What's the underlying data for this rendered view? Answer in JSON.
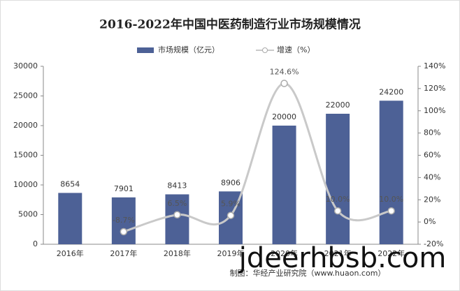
{
  "chart_data": {
    "type": "bar-line",
    "title": "2016-2022年中国中医药制造行业市场规模情况",
    "categories": [
      "2016年",
      "2017年",
      "2018年",
      "2019年",
      "2020年",
      "2021年",
      "2022年"
    ],
    "series": [
      {
        "name": "市场规模（亿元）",
        "type": "bar",
        "color": "#4d6196",
        "values": [
          8654,
          7901,
          8413,
          8906,
          20000,
          22000,
          24200
        ]
      },
      {
        "name": "增速（%）",
        "type": "line",
        "axis": "y2",
        "color": "#c9c9c9",
        "values": [
          null,
          -8.7,
          6.5,
          5.9,
          124.6,
          10.0,
          10.0
        ],
        "value_labels": [
          null,
          "-8.7%",
          "6.5%",
          "5.9%",
          "124.6%",
          "10.0%",
          "10.0%"
        ]
      }
    ],
    "ylim": [
      0,
      30000
    ],
    "yticks": [
      0,
      5000,
      10000,
      15000,
      20000,
      25000,
      30000
    ],
    "y2lim": [
      -20,
      140
    ],
    "y2ticks": [
      {
        "value": -20,
        "label": "-20%"
      },
      {
        "value": 0,
        "label": "0%"
      },
      {
        "value": 20,
        "label": "20%"
      },
      {
        "value": 40,
        "label": "40%"
      },
      {
        "value": 60,
        "label": "60%"
      },
      {
        "value": 80,
        "label": "80%"
      },
      {
        "value": 100,
        "label": "100%"
      },
      {
        "value": 120,
        "label": "120%"
      },
      {
        "value": 140,
        "label": "140%"
      }
    ],
    "grid": false,
    "legend": "top",
    "source": "制图：华经产业研究院（www.huaon.com）",
    "watermark": "jdeerhbsb.com"
  }
}
